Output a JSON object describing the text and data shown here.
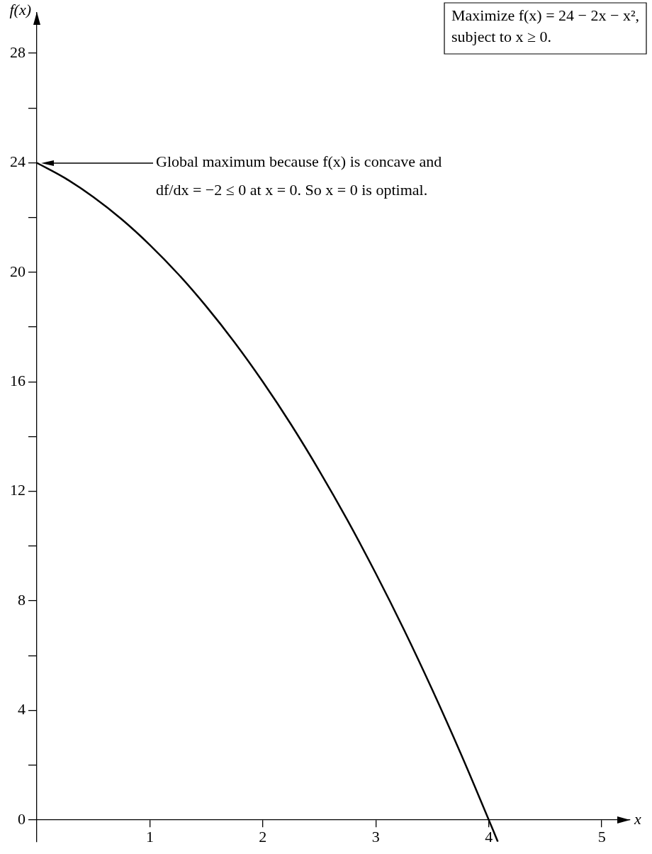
{
  "chart_data": {
    "type": "line",
    "xlabel": "x",
    "ylabel": "f(x)",
    "x": [
      0,
      0.25,
      0.5,
      0.75,
      1,
      1.25,
      1.5,
      1.75,
      2,
      2.25,
      2.5,
      2.75,
      3,
      3.25,
      3.5,
      3.75,
      4,
      4.08
    ],
    "series": [
      {
        "color": "#000000",
        "values": [
          24,
          23.44,
          22.75,
          21.94,
          21,
          19.94,
          18.75,
          17.44,
          16,
          14.44,
          12.75,
          10.94,
          9,
          6.94,
          4.75,
          2.44,
          0,
          -0.8
        ]
      }
    ],
    "xlim": [
      0,
      5.25
    ],
    "ylim": [
      -0.8,
      29.5
    ],
    "xticks": [
      1,
      2,
      3,
      4,
      5
    ],
    "yticks": [
      0,
      {
        "value": 2,
        "label": null
      },
      4,
      {
        "value": 6,
        "label": null
      },
      8,
      {
        "value": 10,
        "label": null
      },
      12,
      {
        "value": 14,
        "label": null
      },
      16,
      {
        "value": 18,
        "label": null
      },
      20,
      {
        "value": 22,
        "label": null
      },
      24,
      {
        "value": 26,
        "label": null
      },
      28
    ],
    "legend": false,
    "marker": "none",
    "line_style": "solid",
    "annotations": [
      "Maximize f(x) = 24 − 2x − x²,",
      "subject to x ≥ 0.",
      "Global maximum because f(x) is concave and df/dx = −2 ≤ 0 at x = 0. So x = 0 is optimal."
    ]
  }
}
